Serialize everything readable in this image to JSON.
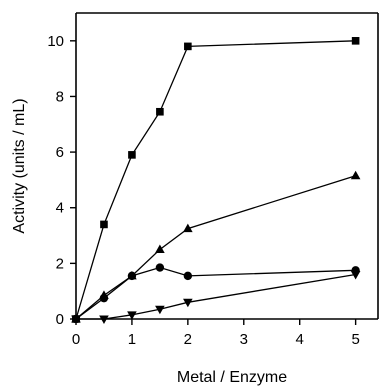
{
  "chart_data": {
    "type": "line",
    "title": "",
    "xlabel": "Metal / Enzyme",
    "ylabel": "Activity (units / mL)",
    "xlim": [
      0,
      5.4
    ],
    "ylim": [
      0,
      11
    ],
    "x_ticks": [
      "0",
      "1",
      "2",
      "3",
      "4",
      "5"
    ],
    "y_ticks": [
      "0",
      "2",
      "4",
      "6",
      "8",
      "10"
    ],
    "grid": false,
    "legend": "none",
    "series": [
      {
        "marker": "square",
        "points": [
          [
            0,
            0
          ],
          [
            0.5,
            3.4
          ],
          [
            1,
            5.9
          ],
          [
            1.5,
            7.45
          ],
          [
            2,
            9.8
          ],
          [
            5,
            10.0
          ]
        ]
      },
      {
        "marker": "triangle-up",
        "points": [
          [
            0,
            0
          ],
          [
            0.5,
            0.85
          ],
          [
            1,
            1.55
          ],
          [
            1.5,
            2.5
          ],
          [
            2,
            3.25
          ],
          [
            5,
            5.15
          ]
        ]
      },
      {
        "marker": "circle",
        "points": [
          [
            0,
            0
          ],
          [
            0.5,
            0.75
          ],
          [
            1,
            1.55
          ],
          [
            1.5,
            1.85
          ],
          [
            2,
            1.55
          ],
          [
            5,
            1.75
          ]
        ]
      },
      {
        "marker": "triangle-down",
        "points": [
          [
            0,
            0
          ],
          [
            0.5,
            0.0
          ],
          [
            1,
            0.15
          ],
          [
            1.5,
            0.35
          ],
          [
            2,
            0.6
          ],
          [
            5,
            1.6
          ]
        ]
      }
    ],
    "colors": {
      "line": "#000000",
      "marker": "#000000"
    }
  }
}
